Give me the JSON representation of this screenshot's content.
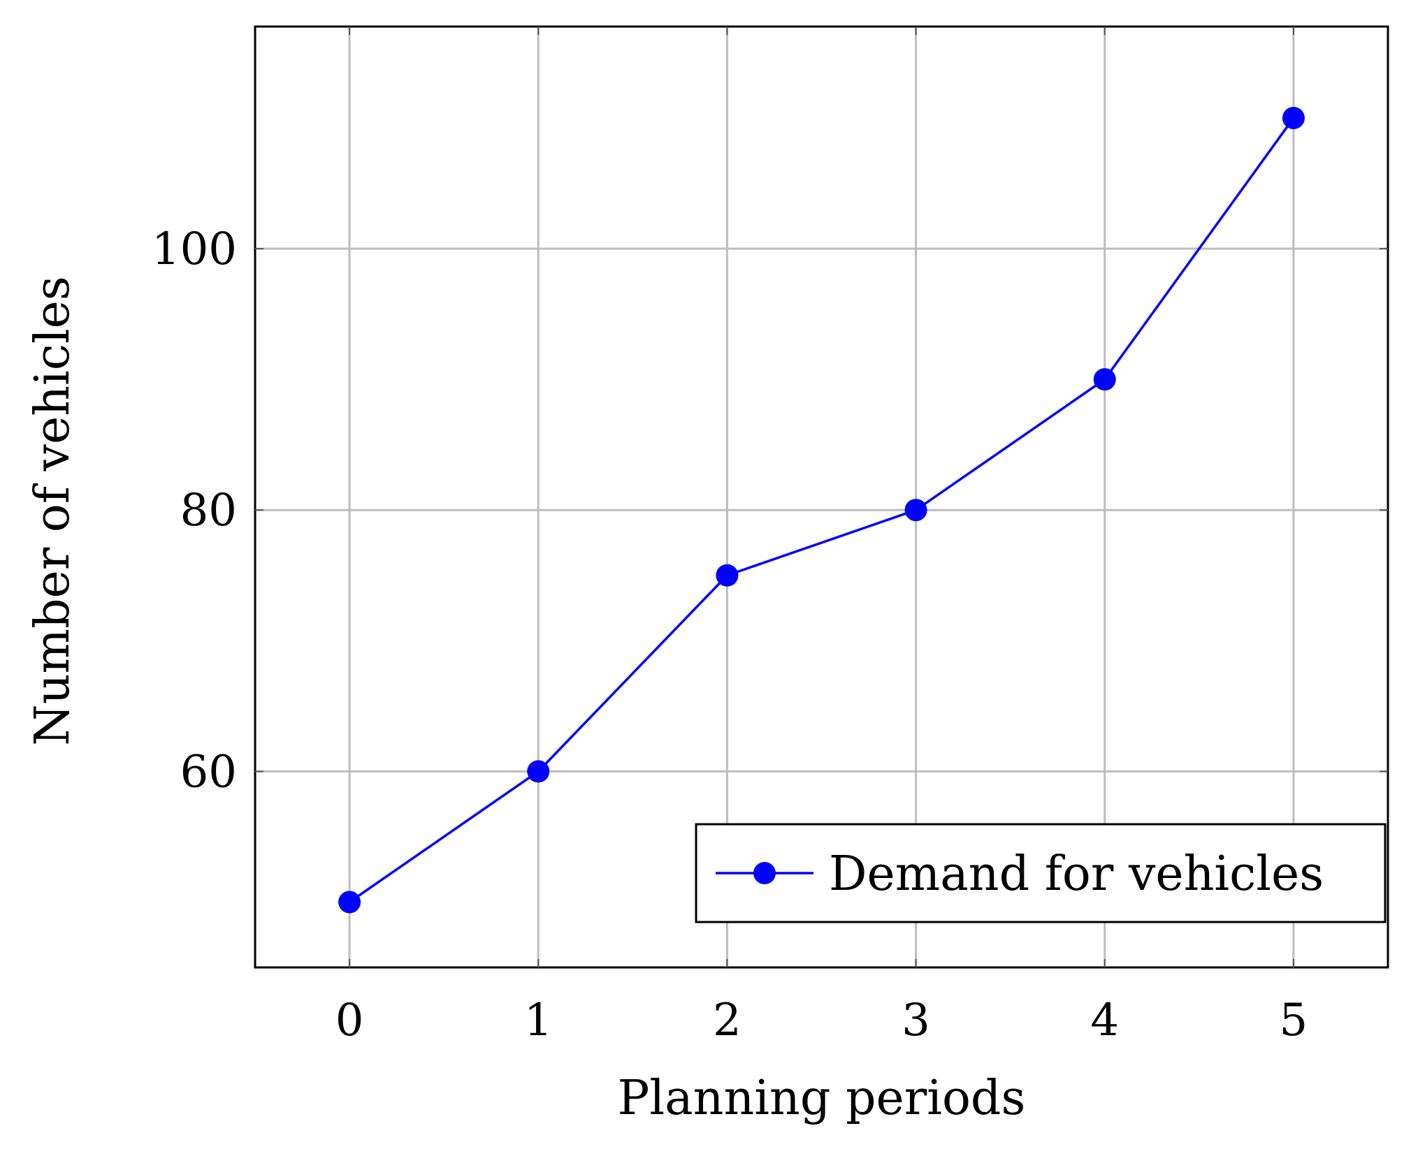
{
  "chart_data": {
    "type": "line",
    "title": "",
    "xlabel": "Planning periods",
    "ylabel": "Number of vehicles",
    "x": [
      0,
      1,
      2,
      3,
      4,
      5
    ],
    "xticks": [
      "0",
      "1",
      "2",
      "3",
      "4",
      "5"
    ],
    "yticks": [
      "60",
      "80",
      "100"
    ],
    "xlim": [
      -0.5,
      5.5
    ],
    "ylim": [
      45,
      117
    ],
    "grid": true,
    "legend_position": "bottom-right",
    "series": [
      {
        "name": "Demand for vehicles",
        "values": [
          50,
          60,
          75,
          80,
          90,
          110
        ],
        "color": "#0000ff",
        "marker": "circle"
      }
    ]
  }
}
